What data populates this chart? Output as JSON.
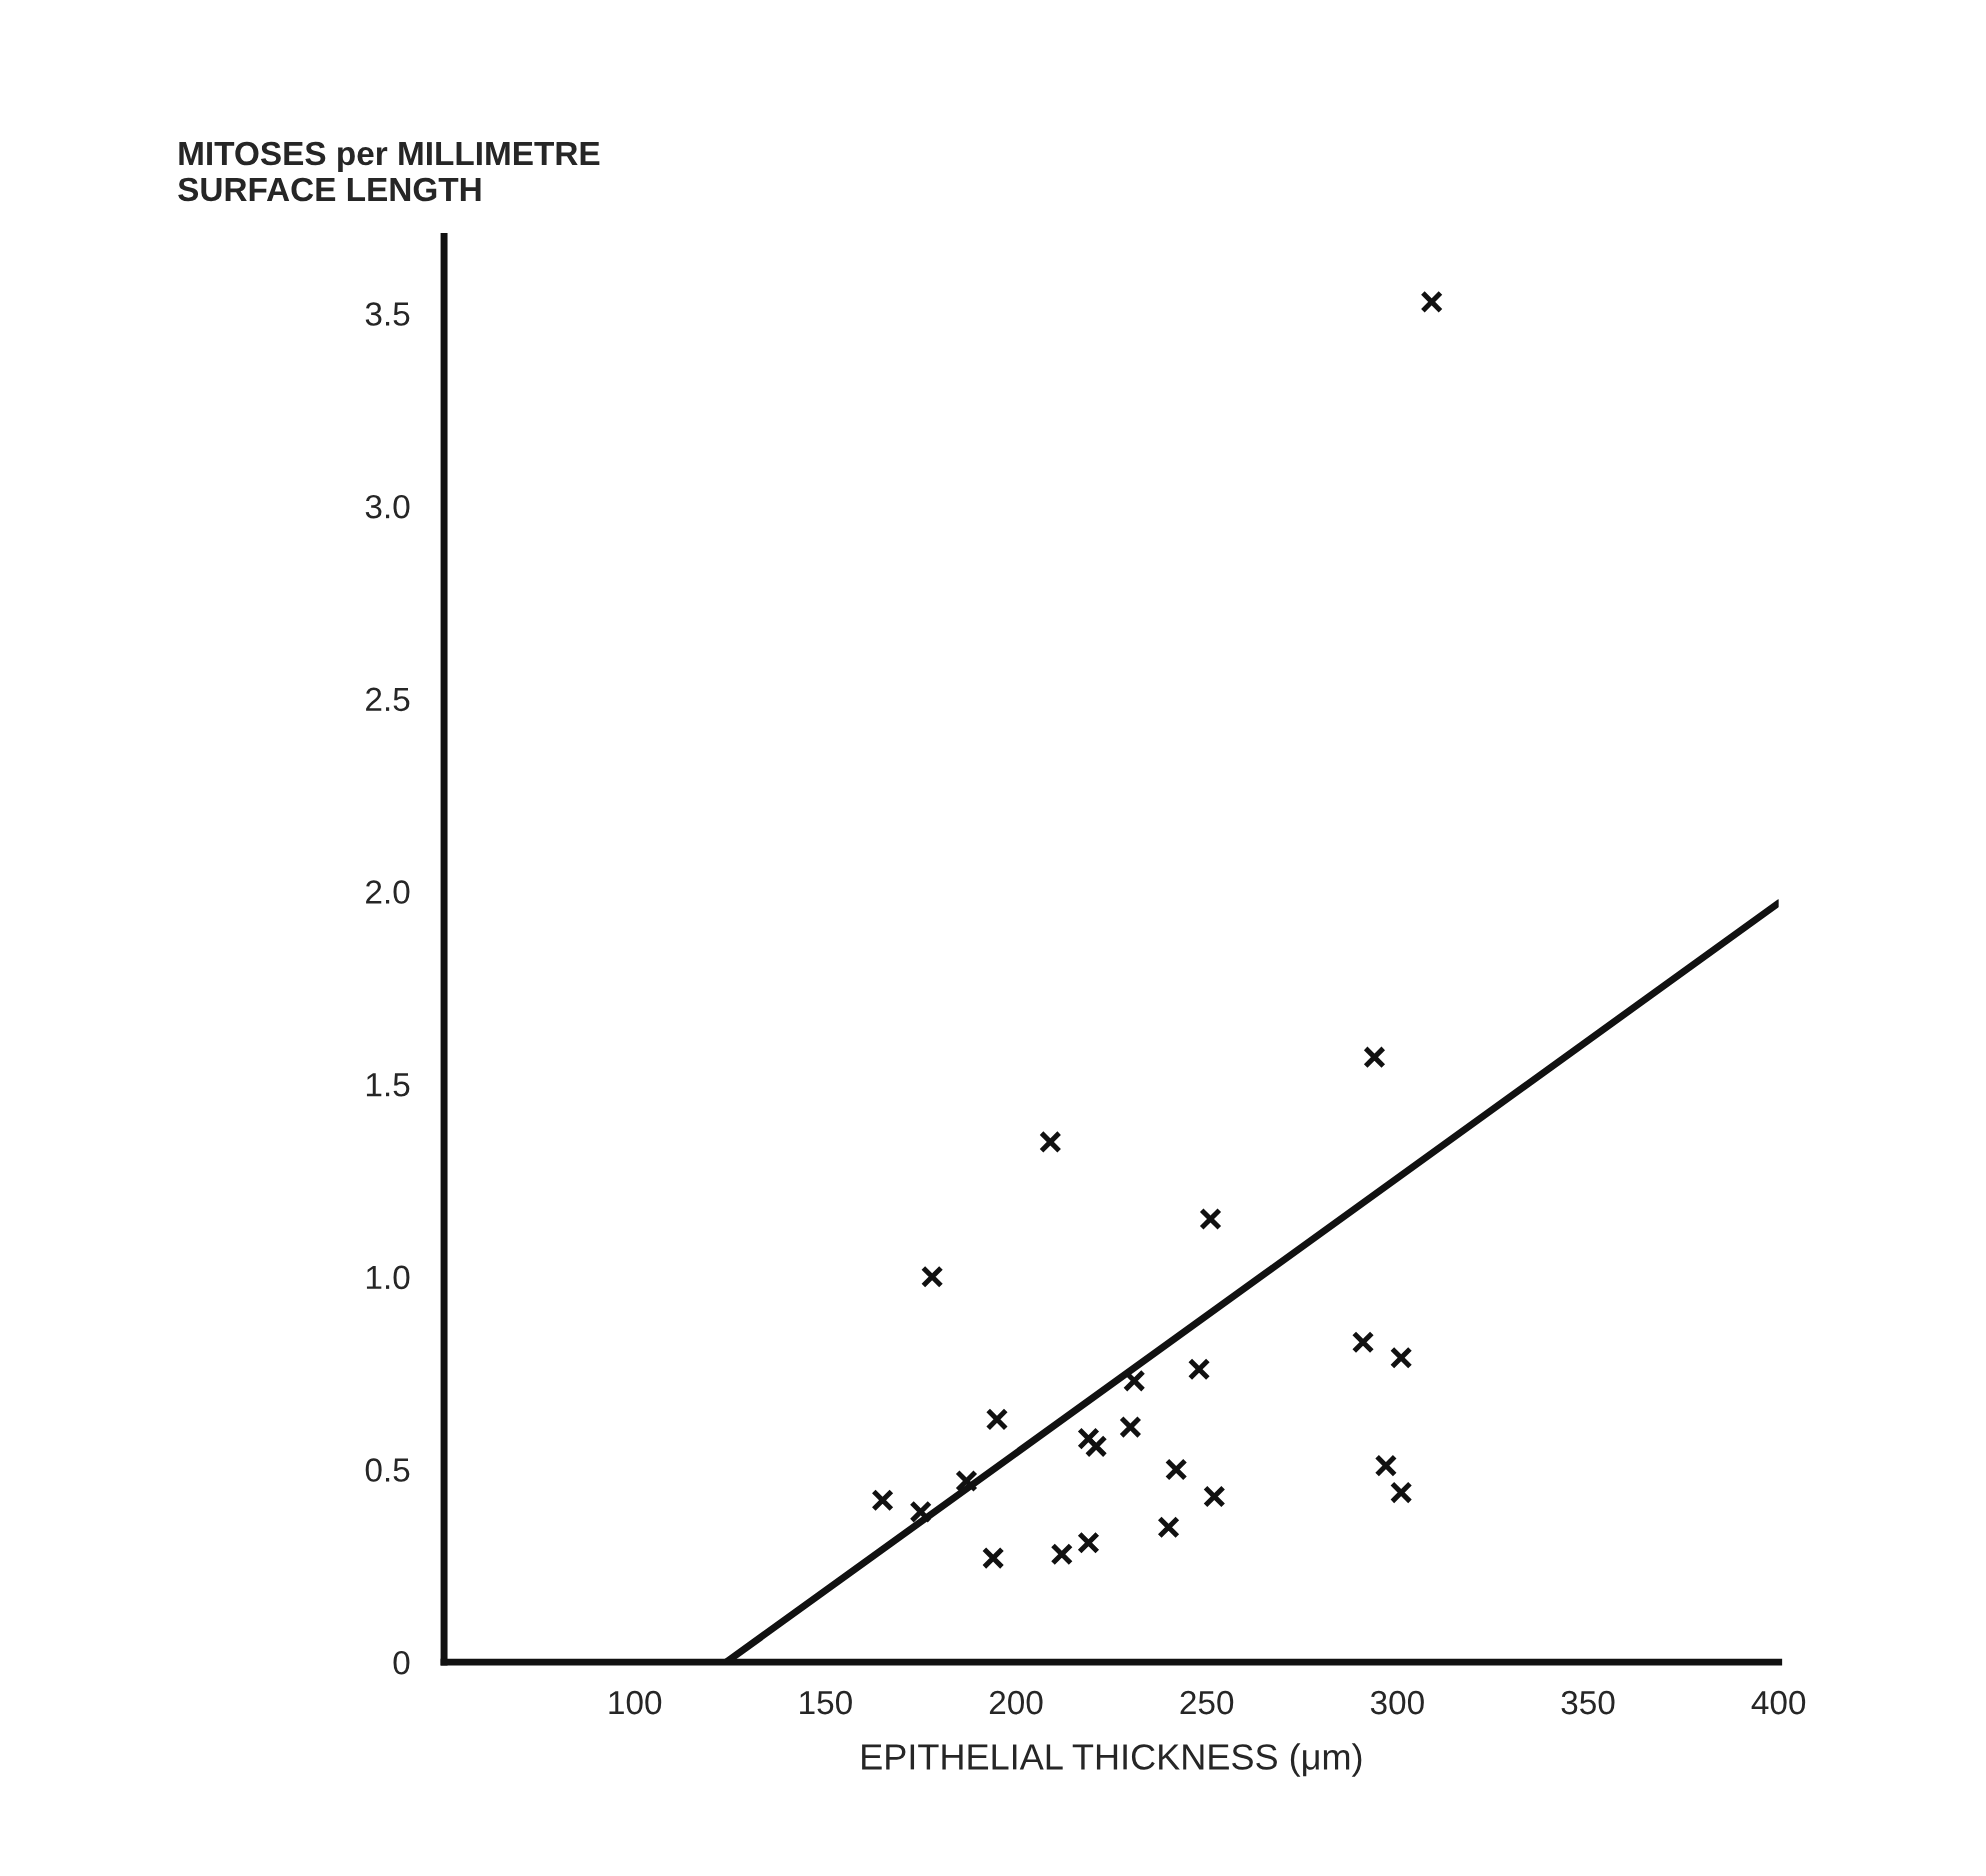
{
  "chart_data": {
    "type": "scatter",
    "xlabel": "EPITHELIAL THICKNESS (μm)",
    "ylabel": "MITOSES per MILLIMETRE\nSURFACE LENGTH",
    "series": [
      {
        "color": "#111111",
        "marker": "cross",
        "x": [
          165,
          175,
          187,
          195,
          194,
          212,
          219,
          219,
          221,
          230,
          231,
          242,
          240,
          248,
          252,
          297,
          301,
          178,
          209,
          251,
          294,
          291,
          301,
          309
        ],
        "values": [
          0.42,
          0.39,
          0.47,
          0.63,
          0.27,
          0.28,
          0.31,
          0.58,
          0.56,
          0.61,
          0.73,
          0.5,
          0.35,
          0.76,
          0.43,
          0.51,
          0.44,
          1.0,
          1.35,
          1.15,
          1.57,
          0.83,
          0.79,
          3.53
        ]
      },
      {
        "type": "line",
        "color": "#111111",
        "marker": "none",
        "line_style": "solid",
        "x": [
          124,
          400
        ],
        "values": [
          0,
          1.97
        ]
      }
    ],
    "xlim": [
      50,
      400
    ],
    "ylim": [
      0,
      3.7
    ],
    "xticks": [
      100,
      150,
      200,
      250,
      300,
      350,
      400
    ],
    "yticks": [
      0,
      0.5,
      {
        "value": 1,
        "label": "1.0"
      },
      1.5,
      {
        "value": 2,
        "label": "2.0"
      },
      2.5,
      {
        "value": 3,
        "label": "3.0"
      },
      3.5
    ],
    "grid": false,
    "legend": false
  }
}
